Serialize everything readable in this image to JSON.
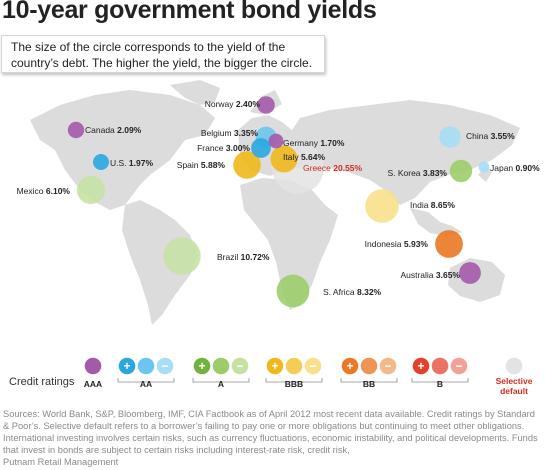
{
  "title": "10-year government bond yields",
  "subtitle": "The size of the circle corresponds to the yield of the country’s debt. The higher the yield, the bigger the circle.",
  "credit_ratings_label": "Credit ratings",
  "sources": "Sources: World Bank, S&P, Bloomberg, IMF, CIA Factbook as of April 2012 most recent data available. Credit ratings by Standard & Poor’s. Selective default refers to a borrower’s failing to pay one or more obligations but continuing to meet other obligations. International investing involves certain risks, such as currency fluctuations, economic instability, and political developments. Funds that invest in bonds are subject to certain risks including interest-rate risk, credit risk,",
  "sources_tail": "Putnam Retail Management",
  "colors": {
    "AAA": "#a45aab",
    "AA": [
      "#2aa7e0",
      "#6cc5ee",
      "#a7ddf5"
    ],
    "A": [
      "#72b33e",
      "#9ccd6a",
      "#c6e1a4"
    ],
    "BBB": [
      "#f0b81c",
      "#f4cd55",
      "#f8e08c"
    ],
    "BB": [
      "#eb7824",
      "#f09455",
      "#f5b888"
    ],
    "B": [
      "#e2422b",
      "#ea7262",
      "#f0a296"
    ],
    "SD": "#e3e3e3",
    "map": "#dcdcdc"
  },
  "chart_data": {
    "type": "bubble-map",
    "title": "10-year government bond yields",
    "value_unit": "%",
    "series": [
      {
        "country": "Norway",
        "label": "Norway 2.40%",
        "yield": 2.4,
        "rating": "AAA"
      },
      {
        "country": "Canada",
        "label": "Canada 2.09%",
        "yield": 2.09,
        "rating": "AAA"
      },
      {
        "country": "U.S.",
        "label": "U.S. 1.97%",
        "yield": 1.97,
        "rating": "AA+"
      },
      {
        "country": "Belgium",
        "label": "Belgium 3.35%",
        "yield": 3.35,
        "rating": "AA"
      },
      {
        "country": "Germany",
        "label": "Germany 1.70%",
        "yield": 1.7,
        "rating": "AAA"
      },
      {
        "country": "France",
        "label": "France 3.00%",
        "yield": 3.0,
        "rating": "AA+"
      },
      {
        "country": "Italy",
        "label": "Italy 5.64%",
        "yield": 5.64,
        "rating": "BBB+"
      },
      {
        "country": "Spain",
        "label": "Spain 5.88%",
        "yield": 5.88,
        "rating": "BBB+"
      },
      {
        "country": "Greece",
        "label": "Greece 20.55%",
        "yield": 20.55,
        "rating": "SD"
      },
      {
        "country": "China",
        "label": "China 3.55%",
        "yield": 3.55,
        "rating": "AA-"
      },
      {
        "country": "S. Korea",
        "label": "S. Korea 3.83%",
        "yield": 3.83,
        "rating": "A"
      },
      {
        "country": "Japan",
        "label": "Japan 0.90%",
        "yield": 0.9,
        "rating": "AA-"
      },
      {
        "country": "India",
        "label": "India 8.65%",
        "yield": 8.65,
        "rating": "BBB-"
      },
      {
        "country": "Mexico",
        "label": "Mexico 6.10%",
        "yield": 6.1,
        "rating": "A-"
      },
      {
        "country": "Indonesia",
        "label": "Indonesia 5.93%",
        "yield": 5.93,
        "rating": "BB+"
      },
      {
        "country": "Brazil",
        "label": "Brazil 10.72%",
        "yield": 10.72,
        "rating": "A-"
      },
      {
        "country": "Australia",
        "label": "Australia 3.65%",
        "yield": 3.65,
        "rating": "AAA"
      },
      {
        "country": "S. Africa",
        "label": "S. Africa 8.32%",
        "yield": 8.32,
        "rating": "A"
      }
    ],
    "legend": [
      {
        "name": "AAA",
        "swatches": [
          "AAA"
        ]
      },
      {
        "name": "AA",
        "swatches": [
          "+",
          "",
          "−"
        ]
      },
      {
        "name": "A",
        "swatches": [
          "+",
          "",
          "−"
        ]
      },
      {
        "name": "BBB",
        "swatches": [
          "+",
          "",
          "−"
        ]
      },
      {
        "name": "BB",
        "swatches": [
          "+",
          "",
          "−"
        ]
      },
      {
        "name": "B",
        "swatches": [
          "+",
          "",
          "−"
        ]
      },
      {
        "name": "Selective default",
        "swatches": [
          "SD"
        ]
      }
    ]
  }
}
